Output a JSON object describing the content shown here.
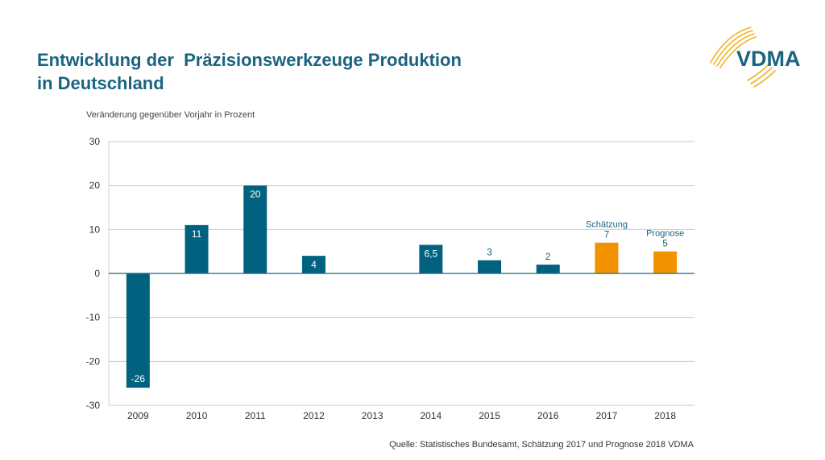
{
  "title_line1": "Entwicklung der  Präzisionswerkzeuge Produktion",
  "title_line2": "in Deutschland",
  "logo_text": "VDMA",
  "source": "Quelle: Statistisches Bundesamt, Schätzung 2017 und Prognose 2018 VDMA",
  "colors": {
    "primary": "#00627f",
    "forecast": "#f39200",
    "title": "#1a6480"
  },
  "chart_data": {
    "type": "bar",
    "ylabel": "Veränderung gegenüber Vorjahr in Prozent",
    "categories": [
      "2009",
      "2010",
      "2011",
      "2012",
      "2013",
      "2014",
      "2015",
      "2016",
      "2017",
      "2018"
    ],
    "values": [
      -26,
      11,
      20,
      4,
      0,
      6.5,
      3,
      2,
      7,
      5
    ],
    "value_labels": [
      "-26",
      "11",
      "20",
      "4",
      "",
      "6,5",
      "3",
      "2",
      "7",
      "5"
    ],
    "kinds": [
      "actual",
      "actual",
      "actual",
      "actual",
      "actual",
      "actual",
      "actual",
      "actual",
      "estimate",
      "forecast"
    ],
    "annotations": {
      "2017": "Schätzung",
      "2018": "Prognose"
    },
    "ylim": [
      -30,
      30
    ],
    "yticks": [
      30,
      20,
      10,
      0,
      -10,
      -20,
      -30
    ],
    "grid": true
  }
}
